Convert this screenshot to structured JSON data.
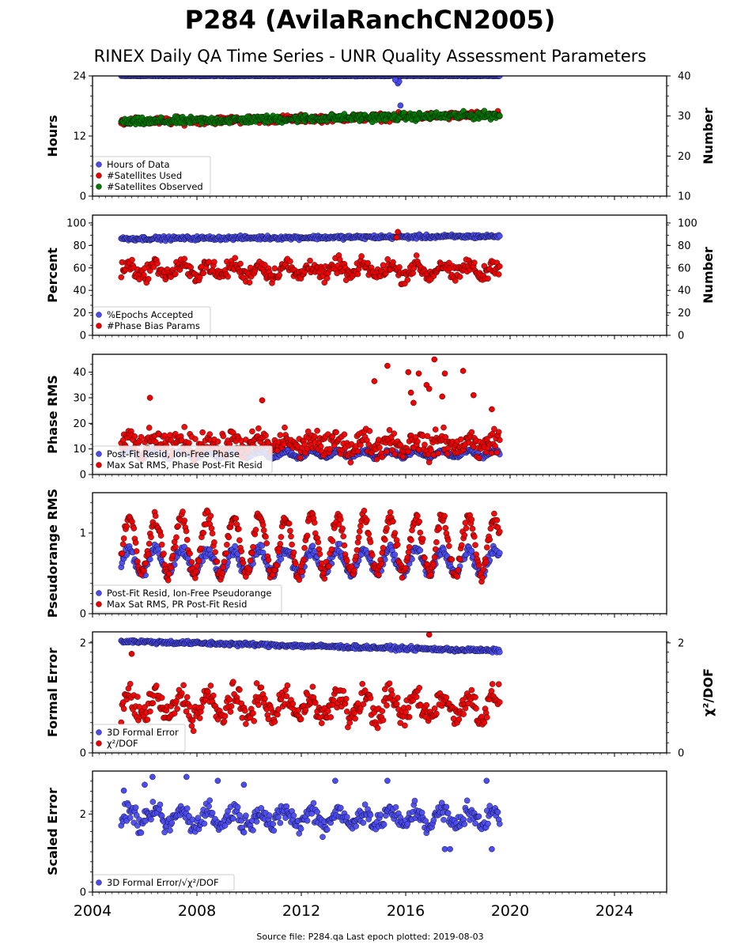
{
  "title": "P284 (AvilaRanchCN2005)",
  "subtitle": "RINEX Daily QA Time Series - UNR Quality Assessment Parameters",
  "footer": "Source file: P284.qa Last epoch plotted: 2019-08-03",
  "colors": {
    "blue": "#4b4bf0",
    "red": "#ee0000",
    "green": "#007a00",
    "edge": "#000000"
  },
  "x_axis": {
    "ticks": [
      2004,
      2008,
      2012,
      2016,
      2020,
      2024
    ],
    "range": [
      2004,
      2026
    ]
  },
  "chart_data": [
    {
      "type": "scatter",
      "id": "hours",
      "ylabel": "Hours",
      "ylabel_right": "Number",
      "ylim": [
        0,
        24
      ],
      "yticks": [
        0,
        12,
        24
      ],
      "ylim_right": [
        10,
        40
      ],
      "yticks_right": [
        10,
        20,
        30,
        40
      ],
      "legend": [
        "Hours of Data",
        "#Satellites Used",
        "#Satellites Observed"
      ],
      "series": [
        {
          "name": "Hours of Data",
          "color": "blue",
          "axis": "left",
          "x_range": [
            2005.1,
            2019.6
          ],
          "model": "flat",
          "base": 24,
          "noise": 0.05,
          "extra_points": [
            [
              2015.7,
              22.5
            ],
            [
              2015.75,
              22.9
            ],
            [
              2015.6,
              23.2
            ],
            [
              2015.8,
              18.1
            ]
          ]
        },
        {
          "name": "#Satellites Used",
          "color": "red",
          "axis": "right",
          "x_range": [
            2005.1,
            2019.6
          ],
          "model": "trend",
          "base": 28.5,
          "slope": 0.12,
          "noise": 0.8
        },
        {
          "name": "#Satellites Observed",
          "color": "green",
          "axis": "right",
          "x_range": [
            2005.1,
            2019.6
          ],
          "model": "trend",
          "base": 28.5,
          "slope": 0.12,
          "noise": 0.8
        }
      ]
    },
    {
      "type": "scatter",
      "id": "percent",
      "ylabel": "Percent",
      "ylabel_right": "Number",
      "ylim": [
        0,
        107
      ],
      "yticks": [
        0,
        20,
        40,
        60,
        80,
        100
      ],
      "ylim_right": [
        0,
        107
      ],
      "yticks_right": [
        0,
        20,
        40,
        60,
        80,
        100
      ],
      "legend": [
        "%Epochs Accepted",
        "#Phase Bias Params"
      ],
      "series": [
        {
          "name": "%Epochs Accepted",
          "color": "blue",
          "axis": "left",
          "x_range": [
            2005.1,
            2019.6
          ],
          "model": "trend",
          "base": 86,
          "slope": 0.15,
          "noise": 1.5
        },
        {
          "name": "#Phase Bias Params",
          "color": "red",
          "axis": "right",
          "x_range": [
            2005.1,
            2019.6
          ],
          "model": "wave",
          "base": 58,
          "amp": 5,
          "noise": 6,
          "extra_points": [
            [
              2015.7,
              92
            ],
            [
              2015.65,
              87
            ]
          ]
        }
      ]
    },
    {
      "type": "scatter",
      "id": "phase",
      "ylabel": "Phase RMS",
      "ylim": [
        0,
        47
      ],
      "yticks": [
        0,
        10,
        20,
        30,
        40
      ],
      "legend": [
        "Post-Fit Resid, Ion-Free Phase",
        "Max Sat RMS, Phase Post-Fit Resid"
      ],
      "series": [
        {
          "name": "Post-Fit Resid, Ion-Free Phase",
          "color": "blue",
          "axis": "left",
          "x_range": [
            2005.1,
            2019.6
          ],
          "model": "wave",
          "base": 8,
          "amp": 1.2,
          "noise": 0.8
        },
        {
          "name": "Max Sat RMS, Phase Post-Fit Resid",
          "color": "red",
          "axis": "left",
          "x_range": [
            2005.1,
            2019.6
          ],
          "model": "wave",
          "base": 12,
          "amp": 2,
          "noise": 4,
          "extra_points": [
            [
              2015.3,
              42.5
            ],
            [
              2016.1,
              40
            ],
            [
              2016.5,
              39.5
            ],
            [
              2017.1,
              45
            ],
            [
              2017.5,
              39.5
            ],
            [
              2018.2,
              40.5
            ],
            [
              2014.8,
              36.5
            ],
            [
              2016.8,
              35
            ],
            [
              2016.9,
              33.5
            ],
            [
              2018.6,
              31
            ],
            [
              2017.4,
              30.5
            ],
            [
              2006.2,
              30
            ],
            [
              2010.5,
              29
            ],
            [
              2016.2,
              32
            ],
            [
              2016.3,
              28
            ],
            [
              2019.3,
              25.5
            ]
          ]
        }
      ]
    },
    {
      "type": "scatter",
      "id": "pseudorange",
      "ylabel": "Pseudorange RMS",
      "ylim": [
        0,
        1.5
      ],
      "yticks": [
        0,
        1
      ],
      "legend": [
        "Post-Fit Resid, Ion-Free Pseudorange",
        "Max Sat RMS, PR Post-Fit Resid"
      ],
      "series": [
        {
          "name": "Post-Fit Resid, Ion-Free Pseudorange",
          "color": "blue",
          "axis": "left",
          "x_range": [
            2005.1,
            2019.6
          ],
          "model": "wave",
          "base": 0.65,
          "amp": 0.15,
          "noise": 0.06
        },
        {
          "name": "Max Sat RMS, PR Post-Fit Resid",
          "color": "red",
          "axis": "left",
          "x_range": [
            2005.1,
            2019.6
          ],
          "model": "wave",
          "base": 0.85,
          "amp": 0.35,
          "noise": 0.08
        }
      ]
    },
    {
      "type": "scatter",
      "id": "formal",
      "ylabel": "Formal Error",
      "ylabel_right": "χ²/DOF",
      "ylim": [
        0,
        2.2
      ],
      "yticks": [
        0,
        2
      ],
      "ylim_right": [
        0,
        2.2
      ],
      "yticks_right": [
        0,
        2
      ],
      "legend": [
        "3D Formal Error",
        "χ²/DOF"
      ],
      "series": [
        {
          "name": "3D Formal Error",
          "color": "blue",
          "axis": "left",
          "x_range": [
            2005.1,
            2019.6
          ],
          "model": "trend",
          "base": 2.03,
          "slope": -0.012,
          "noise": 0.03
        },
        {
          "name": "χ²/DOF",
          "color": "red",
          "axis": "right",
          "x_range": [
            2005.1,
            2019.6
          ],
          "model": "wave",
          "base": 0.85,
          "amp": 0.2,
          "noise": 0.2,
          "extra_points": [
            [
              2016.9,
              2.15
            ],
            [
              2005.5,
              1.8
            ]
          ]
        }
      ]
    },
    {
      "type": "scatter",
      "id": "scaled",
      "ylabel": "Scaled Error",
      "ylim": [
        0,
        3.1
      ],
      "yticks": [
        0,
        2
      ],
      "legend": [
        "3D Formal Error/√χ²/DOF"
      ],
      "series": [
        {
          "name": "3D Formal Error/√χ²/DOF",
          "color": "blue",
          "axis": "left",
          "x_range": [
            2005.1,
            2019.6
          ],
          "model": "wave",
          "base": 1.9,
          "amp": 0.2,
          "noise": 0.22,
          "extra_points": [
            [
              2006.3,
              2.95
            ],
            [
              2007.6,
              2.95
            ],
            [
              2006.0,
              2.75
            ],
            [
              2015.3,
              2.85
            ],
            [
              2013.3,
              2.85
            ],
            [
              2019.1,
              2.85
            ],
            [
              2008.8,
              2.85
            ],
            [
              2009.8,
              2.75
            ],
            [
              2005.2,
              2.6
            ],
            [
              2017.5,
              1.1
            ],
            [
              2017.7,
              1.1
            ],
            [
              2019.3,
              1.1
            ]
          ]
        }
      ]
    }
  ]
}
